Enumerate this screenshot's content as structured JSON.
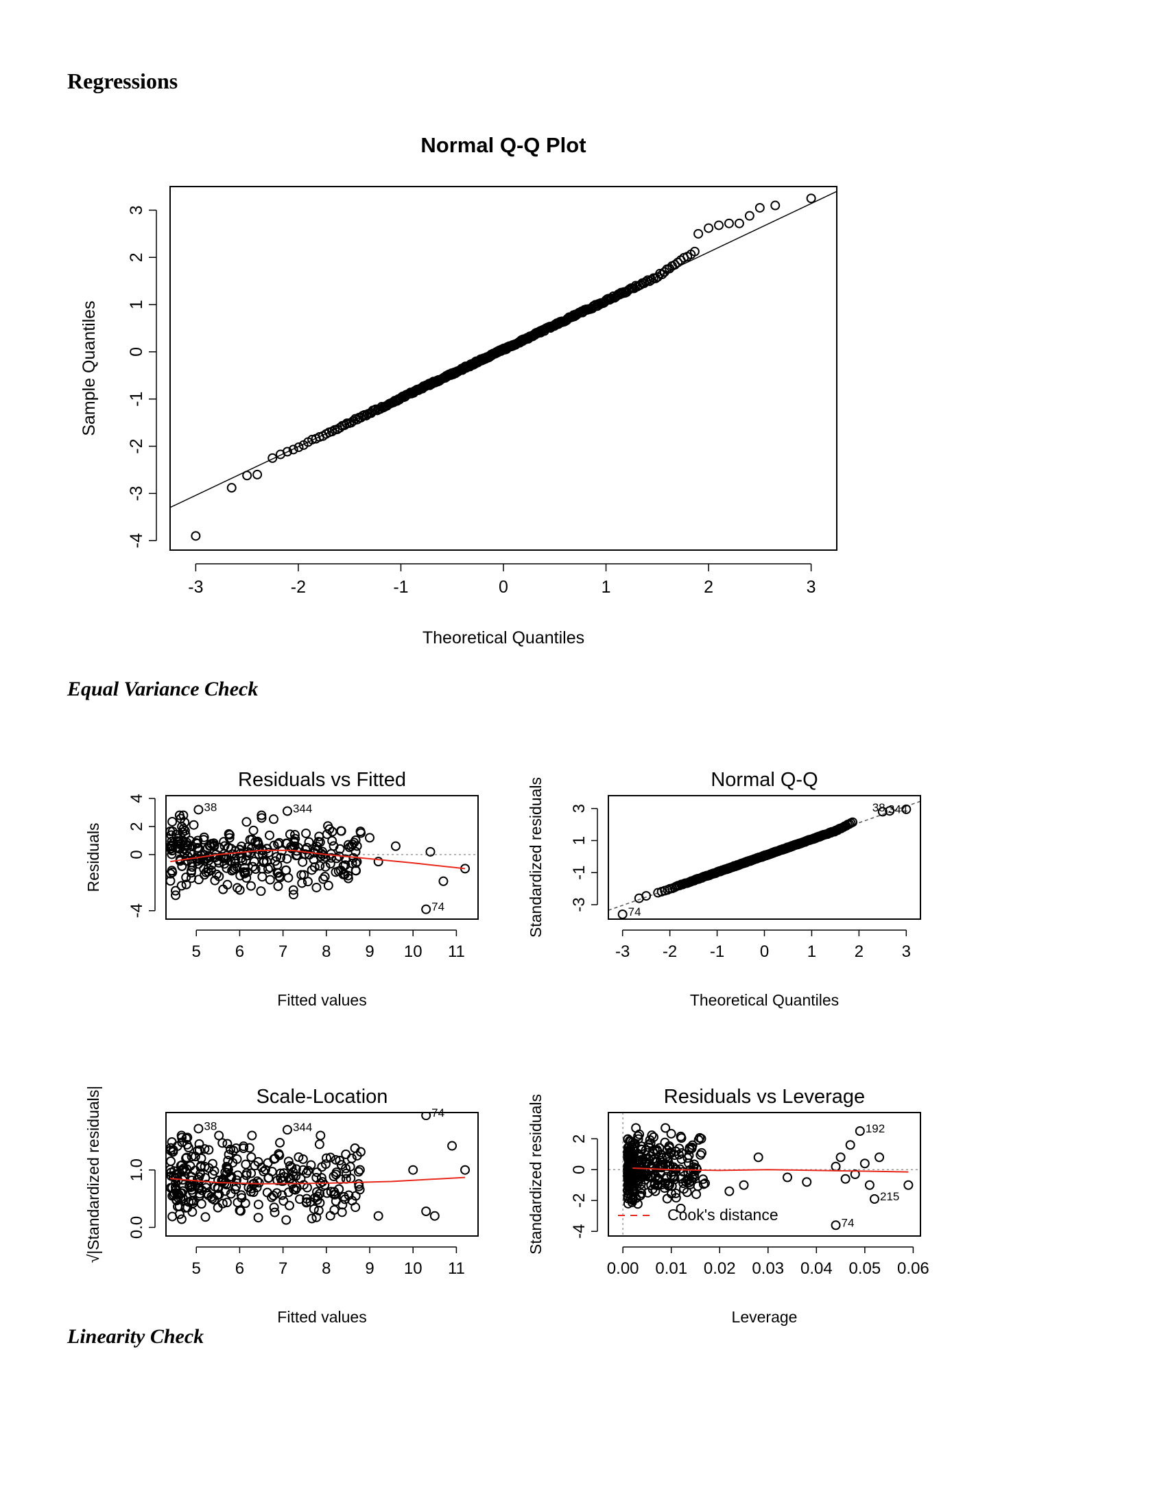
{
  "headings": {
    "regressions": "Regressions",
    "equal_variance": "Equal Variance Check",
    "linearity": "Linearity Check"
  },
  "colors": {
    "smoother": "#e8271b",
    "ink": "#000000",
    "reference": "#9a9a9a"
  },
  "chart_data": [
    {
      "id": "main-qq",
      "type": "scatter",
      "title": "Normal Q-Q Plot",
      "xlabel": "Theoretical Quantiles",
      "ylabel": "Sample Quantiles",
      "xlim": [
        -3.25,
        3.25
      ],
      "ylim": [
        -4.2,
        3.5
      ],
      "xticks": [
        -3,
        -2,
        -1,
        0,
        1,
        2,
        3
      ],
      "yticks": [
        -4,
        -3,
        -2,
        -1,
        0,
        1,
        2,
        3
      ],
      "reference_line": {
        "intercept": 0.05,
        "slope": 1.03
      },
      "generator": "normal-qq",
      "n": 370,
      "points": [
        [
          -3.0,
          -3.9
        ],
        [
          -2.65,
          -2.88
        ],
        [
          -2.5,
          -2.62
        ],
        [
          -2.4,
          -2.6
        ],
        [
          1.9,
          2.5
        ],
        [
          2.0,
          2.62
        ],
        [
          2.1,
          2.68
        ],
        [
          2.2,
          2.72
        ],
        [
          2.3,
          2.72
        ],
        [
          2.4,
          2.88
        ],
        [
          2.5,
          3.05
        ],
        [
          2.65,
          3.1
        ],
        [
          3.0,
          3.25
        ]
      ]
    },
    {
      "id": "resid-fitted",
      "type": "scatter",
      "title": "Residuals vs Fitted",
      "xlabel": "Fitted values",
      "ylabel": "Residuals",
      "xlim": [
        4.3,
        11.5
      ],
      "ylim": [
        -4.6,
        4.2
      ],
      "xticks": [
        5,
        6,
        7,
        8,
        9,
        10,
        11
      ],
      "yticks": [
        -4,
        0,
        2,
        4
      ],
      "generator": "residuals",
      "n": 300,
      "zero_line": 0,
      "smoother": [
        [
          4.4,
          -0.5
        ],
        [
          5.5,
          0.0
        ],
        [
          6.5,
          0.3
        ],
        [
          7.2,
          0.3
        ],
        [
          8.0,
          0.0
        ],
        [
          9.0,
          -0.3
        ],
        [
          10.0,
          -0.6
        ],
        [
          11.2,
          -1.0
        ]
      ],
      "points": [
        [
          5.05,
          3.2
        ],
        [
          7.1,
          3.1
        ],
        [
          10.3,
          -3.9
        ],
        [
          9.0,
          1.2
        ],
        [
          9.6,
          0.6
        ],
        [
          10.4,
          0.2
        ],
        [
          10.7,
          -1.9
        ],
        [
          11.2,
          -1.0
        ],
        [
          8.5,
          -1.5
        ],
        [
          9.2,
          -0.5
        ]
      ],
      "labels": [
        {
          "text": "38",
          "x": 5.05,
          "y": 3.2
        },
        {
          "text": "344",
          "x": 7.1,
          "y": 3.1
        },
        {
          "text": "74",
          "x": 10.3,
          "y": -3.9
        }
      ]
    },
    {
      "id": "std-qq",
      "type": "scatter",
      "title": "Normal Q-Q",
      "xlabel": "Theoretical Quantiles",
      "ylabel": "Standardized residuals",
      "xlim": [
        -3.3,
        3.3
      ],
      "ylim": [
        -3.9,
        3.8
      ],
      "xticks": [
        -3,
        -2,
        -1,
        0,
        1,
        2,
        3
      ],
      "yticks": [
        -3,
        -1,
        1,
        3
      ],
      "reference_line": {
        "intercept": 0.05,
        "slope": 1.03
      },
      "generator": "normal-qq",
      "n": 370,
      "points": [
        [
          -3.0,
          -3.6
        ],
        [
          -2.65,
          -2.6
        ],
        [
          -2.5,
          -2.45
        ],
        [
          2.5,
          2.8
        ],
        [
          2.65,
          2.85
        ],
        [
          3.0,
          2.95
        ]
      ],
      "labels": [
        {
          "text": "74",
          "x": -3.0,
          "y": -3.6
        },
        {
          "text": "344",
          "x": 2.5,
          "y": 2.8
        },
        {
          "text": "38",
          "x": 2.7,
          "y": 2.9
        }
      ]
    },
    {
      "id": "scale-location",
      "type": "scatter",
      "title": "Scale-Location",
      "xlabel": "Fitted values",
      "ylabel": "√|Standardized residuals|",
      "xlim": [
        4.3,
        11.5
      ],
      "ylim": [
        -0.15,
        2.0
      ],
      "xticks": [
        5,
        6,
        7,
        8,
        9,
        10,
        11
      ],
      "yticks": [
        0.0,
        1.0
      ],
      "generator": "scale",
      "n": 300,
      "smoother": [
        [
          4.4,
          0.85
        ],
        [
          5.5,
          0.78
        ],
        [
          6.5,
          0.76
        ],
        [
          8.0,
          0.77
        ],
        [
          9.5,
          0.8
        ],
        [
          11.2,
          0.87
        ]
      ],
      "points": [
        [
          5.05,
          1.72
        ],
        [
          7.1,
          1.7
        ],
        [
          10.3,
          1.95
        ],
        [
          10.9,
          1.42
        ],
        [
          11.2,
          1.0
        ],
        [
          10.5,
          0.2
        ],
        [
          10.3,
          0.28
        ],
        [
          9.2,
          0.2
        ],
        [
          10.0,
          1.0
        ]
      ],
      "labels": [
        {
          "text": "38",
          "x": 5.05,
          "y": 1.72
        },
        {
          "text": "344",
          "x": 7.1,
          "y": 1.7
        },
        {
          "text": "74",
          "x": 10.3,
          "y": 1.95
        }
      ]
    },
    {
      "id": "resid-leverage",
      "type": "scatter",
      "title": "Residuals vs Leverage",
      "xlabel": "Leverage",
      "ylabel": "Standardized residuals",
      "xlim": [
        -0.003,
        0.0615
      ],
      "ylim": [
        -4.3,
        3.7
      ],
      "xticks": [
        0.0,
        0.01,
        0.02,
        0.03,
        0.04,
        0.05,
        0.06
      ],
      "xticklabels": [
        "0.00",
        "0.01",
        "0.02",
        "0.03",
        "0.04",
        "0.05",
        "0.06"
      ],
      "yticks": [
        -4,
        -2,
        0,
        2
      ],
      "generator": "leverage",
      "n": 300,
      "zero_line": 0,
      "smoother": [
        [
          0.002,
          0.1
        ],
        [
          0.01,
          0.0
        ],
        [
          0.02,
          -0.05
        ],
        [
          0.03,
          0.0
        ],
        [
          0.04,
          -0.05
        ],
        [
          0.05,
          -0.1
        ],
        [
          0.059,
          -0.15
        ]
      ],
      "points": [
        [
          0.049,
          2.5
        ],
        [
          0.044,
          -3.6
        ],
        [
          0.052,
          -1.9
        ],
        [
          0.059,
          -1.0
        ],
        [
          0.047,
          1.6
        ],
        [
          0.05,
          0.4
        ],
        [
          0.045,
          0.8
        ],
        [
          0.053,
          0.8
        ],
        [
          0.048,
          -0.3
        ],
        [
          0.044,
          0.2
        ],
        [
          0.046,
          -0.6
        ],
        [
          0.051,
          -1.0
        ],
        [
          0.028,
          0.8
        ],
        [
          0.034,
          -0.5
        ],
        [
          0.038,
          -0.8
        ],
        [
          0.025,
          -1.0
        ],
        [
          0.022,
          -1.4
        ]
      ],
      "labels": [
        {
          "text": "192",
          "x": 0.049,
          "y": 2.5
        },
        {
          "text": "215",
          "x": 0.052,
          "y": -1.9
        },
        {
          "text": "74",
          "x": 0.044,
          "y": -3.6
        }
      ],
      "legend": {
        "label": "Cook's distance",
        "position": "bottom-left"
      }
    }
  ]
}
